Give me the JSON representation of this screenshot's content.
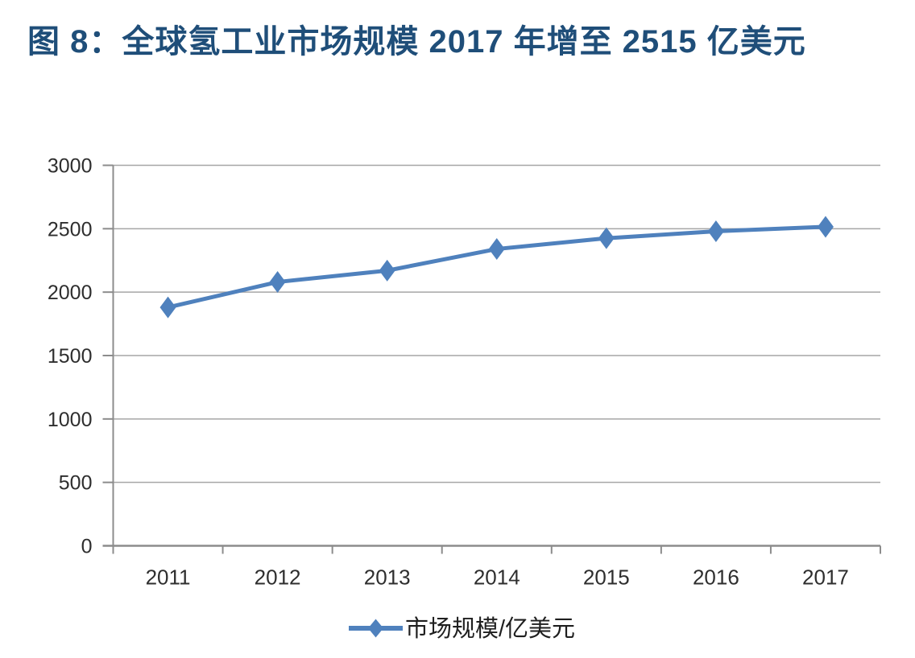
{
  "chart_data": {
    "type": "line",
    "title": "图 8：全球氢工业市场规模 2017 年增至 2515 亿美元",
    "categories": [
      "2011",
      "2012",
      "2013",
      "2014",
      "2015",
      "2016",
      "2017"
    ],
    "series": [
      {
        "name": "市场规模/亿美元",
        "values": [
          1880,
          2080,
          2170,
          2340,
          2425,
          2480,
          2515
        ],
        "color": "#4F81BD",
        "marker": "diamond"
      }
    ],
    "xlabel": "",
    "ylabel": "",
    "ylim": [
      0,
      3000
    ],
    "yticks": [
      0,
      500,
      1000,
      1500,
      2000,
      2500,
      3000
    ],
    "grid": true,
    "legend_position": "bottom",
    "legend_label": "市场规模/亿美元",
    "colors": {
      "title": "#1F4E79",
      "series": "#4F81BD",
      "gridline": "#A6A6A6",
      "axis": "#8C8C8C",
      "tick_label": "#2E2E2E",
      "legend_text": "#1F1F1F",
      "background": "#FFFFFF"
    }
  }
}
